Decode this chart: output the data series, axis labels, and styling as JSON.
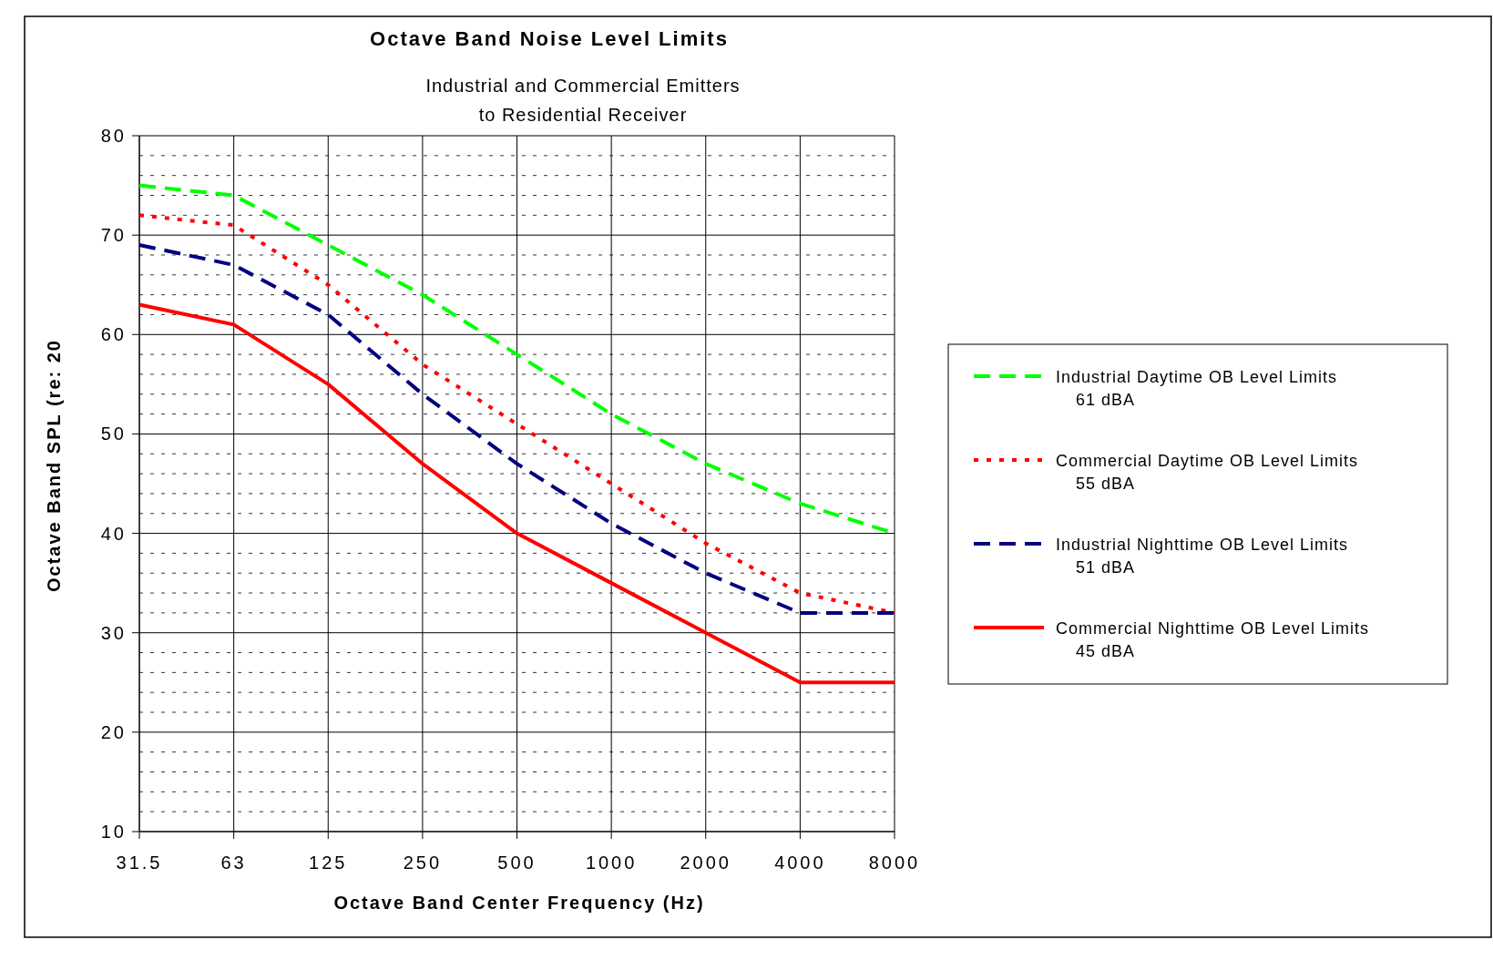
{
  "chart_data": {
    "type": "line",
    "title": "Octave Band Noise Level Limits",
    "subtitle": "Industrial and Commercial Emitters\nto Residential Receiver",
    "xlabel": "Octave Band Center Frequency (Hz)",
    "ylabel": "Octave Band SPL (re: 20",
    "categories": [
      "31.5",
      "63",
      "125",
      "250",
      "500",
      "1000",
      "2000",
      "4000",
      "8000"
    ],
    "series": [
      {
        "name": "Industrial Daytime OB Level Limits\n61 dBA",
        "color": "#00ff00",
        "line_style": "dashed",
        "values": [
          75,
          74,
          69,
          64,
          58,
          52,
          47,
          43,
          40
        ]
      },
      {
        "name": "Commercial Daytime OB Level Limits\n55 dBA",
        "color": "#ff0000",
        "line_style": "dotted",
        "values": [
          72,
          71,
          65,
          57,
          51,
          45,
          39,
          34,
          32
        ]
      },
      {
        "name": "Industrial Nighttime OB Level Limits\n51 dBA",
        "color": "#000080",
        "line_style": "dashed",
        "values": [
          69,
          67,
          62,
          54,
          47,
          41,
          36,
          32,
          32
        ]
      },
      {
        "name": "Commercial Nighttime OB Level Limits\n45 dBA",
        "color": "#ff0000",
        "line_style": "solid",
        "values": [
          63,
          61,
          55,
          47,
          40,
          35,
          30,
          25,
          25
        ]
      }
    ],
    "ylim": [
      10,
      80
    ],
    "yticks": [
      10,
      {
        "value": 12,
        "label": null
      },
      {
        "value": 14,
        "label": null
      },
      {
        "value": 16,
        "label": null
      },
      {
        "value": 18,
        "label": null
      },
      20,
      {
        "value": 22,
        "label": null
      },
      {
        "value": 24,
        "label": null
      },
      {
        "value": 26,
        "label": null
      },
      {
        "value": 28,
        "label": null
      },
      30,
      {
        "value": 32,
        "label": null
      },
      {
        "value": 34,
        "label": null
      },
      {
        "value": 36,
        "label": null
      },
      {
        "value": 38,
        "label": null
      },
      40,
      {
        "value": 42,
        "label": null
      },
      {
        "value": 44,
        "label": null
      },
      {
        "value": 46,
        "label": null
      },
      {
        "value": 48,
        "label": null
      },
      50,
      {
        "value": 52,
        "label": null
      },
      {
        "value": 54,
        "label": null
      },
      {
        "value": 56,
        "label": null
      },
      {
        "value": 58,
        "label": null
      },
      60,
      {
        "value": 62,
        "label": null
      },
      {
        "value": 64,
        "label": null
      },
      {
        "value": 66,
        "label": null
      },
      {
        "value": 68,
        "label": null
      },
      70,
      {
        "value": 72,
        "label": null
      },
      {
        "value": 74,
        "label": null
      },
      {
        "value": 76,
        "label": null
      },
      {
        "value": 78,
        "label": null
      },
      80
    ],
    "grid": true,
    "legend": "right"
  }
}
